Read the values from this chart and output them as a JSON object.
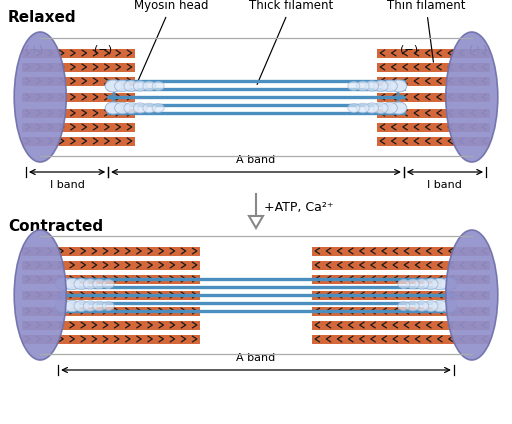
{
  "bg_color": "#ffffff",
  "title_relaxed": "Relaxed",
  "title_contracted": "Contracted",
  "label_myosin": "Myosin head",
  "label_thick": "Thick filament",
  "label_thin": "Thin filament",
  "label_aband": "A band",
  "label_iband": "I band",
  "label_atp": "+ATP, Ca²⁺",
  "thin_color": "#d4683a",
  "thick_color": "#4a8fc0",
  "myosin_head_color": "#dce8f8",
  "myosin_head_edge": "#a0b8d8",
  "disc_color": "#9090cc",
  "disc_edge": "#7070aa",
  "fig_w": 5.12,
  "fig_h": 4.24,
  "dpi": 100
}
